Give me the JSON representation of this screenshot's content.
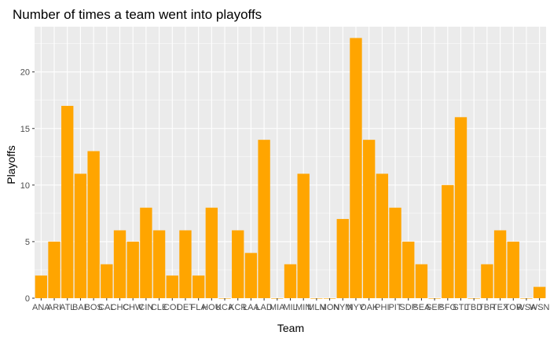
{
  "chart_data": {
    "type": "bar",
    "title": "Number of times a team went into playoffs",
    "xlabel": "Team",
    "ylabel": "Playoffs",
    "ylim": [
      0,
      24
    ],
    "yticks": [
      0,
      5,
      10,
      15,
      20
    ],
    "grid": true,
    "legend": "none",
    "bar_color": "#FFA500",
    "panel_background": "#EBEBEB",
    "gridline_color": "#FFFFFF",
    "categories": [
      "ANA",
      "ARI",
      "ATL",
      "BAL",
      "BOS",
      "CAL",
      "CHC",
      "CHW",
      "CIN",
      "CLE",
      "COL",
      "DET",
      "FLA",
      "HOU",
      "KCA",
      "KCR",
      "LAA",
      "LAD",
      "MIA",
      "MIL",
      "MIN",
      "MLN",
      "MON",
      "NYM",
      "NYY",
      "OAK",
      "PHI",
      "PIT",
      "SDP",
      "SEA",
      "SEP",
      "SFG",
      "STL",
      "TBD",
      "TBR",
      "TEX",
      "TOR",
      "WSA",
      "WSN"
    ],
    "values": [
      2,
      5,
      17,
      11,
      13,
      3,
      6,
      5,
      8,
      6,
      2,
      6,
      2,
      8,
      0,
      6,
      4,
      14,
      0,
      3,
      11,
      0,
      0,
      7,
      23,
      14,
      11,
      8,
      5,
      3,
      0,
      10,
      16,
      0,
      3,
      6,
      5,
      0,
      1
    ]
  }
}
